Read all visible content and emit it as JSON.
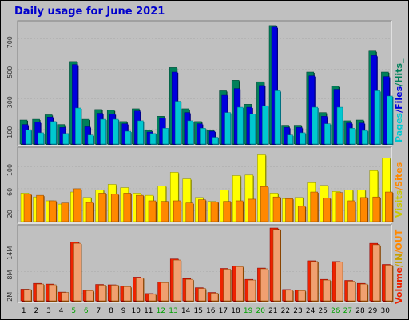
{
  "title": "Daily usage for June 2021",
  "colors": {
    "background": "#c0c0c0",
    "title": "#0000cc",
    "pages": "#00c8d0",
    "files": "#0000dd",
    "hits": "#00805a",
    "visits": "#ffff00",
    "sites": "#ff8800",
    "volume": "#ee2200",
    "in": "#c8a000",
    "out": "#ff8800",
    "weekend_day": "#00a000",
    "weekday_day": "#000000"
  },
  "legend": {
    "pages": "Pages",
    "files": "Files",
    "hits": "Hits",
    "visits": "Visits",
    "sites": "Sites",
    "volume": "Volume",
    "in": "IN",
    "out": "OUT",
    "sep1": "/",
    "sep2": "/",
    "sep3": "_",
    "sep4": "/",
    "sep5": "/",
    "sep6": "/"
  },
  "chart_data": [
    {
      "type": "bar",
      "panel": "hits-files-pages",
      "yticks": [
        "100",
        "300",
        "500",
        "700"
      ],
      "ylim": [
        0,
        800
      ],
      "grid": true,
      "categories": [
        "1",
        "2",
        "3",
        "4",
        "5",
        "6",
        "7",
        "8",
        "9",
        "10",
        "11",
        "12",
        "13",
        "14",
        "15",
        "16",
        "17",
        "18",
        "19",
        "20",
        "21",
        "22",
        "23",
        "24",
        "25",
        "26",
        "27",
        "28",
        "29",
        "30"
      ],
      "series": [
        {
          "name": "Hits",
          "values": [
            160,
            165,
            195,
            130,
            550,
            165,
            230,
            225,
            150,
            235,
            90,
            185,
            510,
            235,
            150,
            90,
            355,
            425,
            265,
            415,
            790,
            125,
            125,
            480,
            210,
            385,
            155,
            160,
            620,
            480
          ]
        },
        {
          "name": "Files",
          "values": [
            130,
            145,
            180,
            110,
            530,
            115,
            205,
            200,
            135,
            220,
            80,
            175,
            480,
            210,
            135,
            85,
            325,
            370,
            245,
            390,
            780,
            110,
            110,
            455,
            185,
            365,
            140,
            140,
            590,
            450
          ]
        },
        {
          "name": "Pages",
          "values": [
            95,
            75,
            150,
            70,
            240,
            60,
            165,
            165,
            85,
            155,
            70,
            105,
            285,
            155,
            105,
            45,
            210,
            245,
            200,
            255,
            355,
            60,
            75,
            245,
            135,
            245,
            105,
            90,
            355,
            320
          ]
        }
      ]
    },
    {
      "type": "bar",
      "panel": "visits-sites",
      "yticks": [
        "20",
        "60",
        "100"
      ],
      "ylim": [
        0,
        130
      ],
      "grid": true,
      "categories": [
        "1",
        "2",
        "3",
        "4",
        "5",
        "6",
        "7",
        "8",
        "9",
        "10",
        "11",
        "12",
        "13",
        "14",
        "15",
        "16",
        "17",
        "18",
        "19",
        "20",
        "21",
        "22",
        "23",
        "24",
        "25",
        "26",
        "27",
        "28",
        "29",
        "30"
      ],
      "series": [
        {
          "name": "Visits",
          "values": [
            52,
            45,
            38,
            32,
            54,
            44,
            58,
            68,
            62,
            52,
            48,
            65,
            90,
            78,
            44,
            37,
            58,
            84,
            85,
            122,
            52,
            42,
            44,
            71,
            66,
            55,
            58,
            58,
            93,
            116
          ]
        },
        {
          "name": "Sites",
          "values": [
            50,
            48,
            38,
            34,
            60,
            35,
            52,
            50,
            52,
            48,
            38,
            37,
            38,
            34,
            40,
            36,
            37,
            38,
            41,
            64,
            45,
            42,
            28,
            54,
            43,
            53,
            38,
            44,
            45,
            54
          ]
        }
      ]
    },
    {
      "type": "bar",
      "panel": "volume",
      "yticks": [
        "2M",
        "8M",
        "14M"
      ],
      "ylim": [
        0,
        20
      ],
      "grid": true,
      "categories": [
        "1",
        "2",
        "3",
        "4",
        "5",
        "6",
        "7",
        "8",
        "9",
        "10",
        "11",
        "12",
        "13",
        "14",
        "15",
        "16",
        "17",
        "18",
        "19",
        "20",
        "21",
        "22",
        "23",
        "24",
        "25",
        "26",
        "27",
        "28",
        "29",
        "30"
      ],
      "series": [
        {
          "name": "Volume",
          "values": [
            3.2,
            4.8,
            4.6,
            2.4,
            16.2,
            3.0,
            4.5,
            4.4,
            4.1,
            6.5,
            2.0,
            5.2,
            11.5,
            6.1,
            3.6,
            2.3,
            8.9,
            9.6,
            5.9,
            9.0,
            20.0,
            3.1,
            3.0,
            11.0,
            5.9,
            10.8,
            5.6,
            4.8,
            15.8,
            10.0
          ]
        },
        {
          "name": "OUT",
          "values": [
            3.1,
            4.6,
            4.4,
            2.3,
            15.8,
            2.8,
            4.3,
            4.3,
            3.9,
            6.3,
            1.8,
            5.0,
            11.2,
            5.9,
            3.4,
            2.1,
            8.7,
            9.4,
            5.7,
            8.8,
            19.6,
            2.9,
            2.8,
            10.8,
            5.7,
            10.6,
            5.4,
            4.6,
            15.4,
            9.8
          ]
        }
      ]
    }
  ]
}
